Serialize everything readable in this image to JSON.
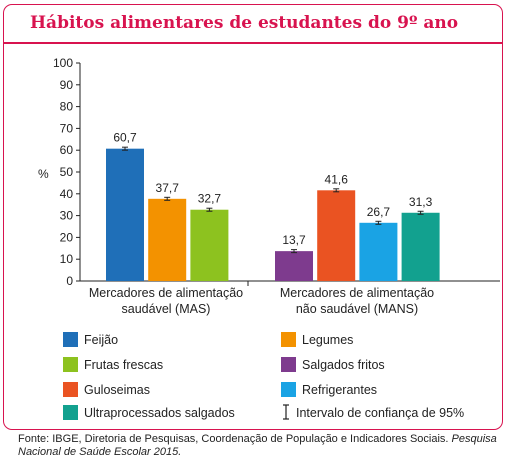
{
  "title": "Hábitos alimentares de estudantes do 9º ano",
  "chart_data": {
    "type": "bar",
    "ylabel": "%",
    "ylim": [
      0,
      100
    ],
    "yticks": [
      0,
      10,
      20,
      30,
      40,
      50,
      60,
      70,
      80,
      90,
      100
    ],
    "groups": [
      {
        "label": [
          "Mercadores de alimentação",
          "saudável (MAS)"
        ],
        "bars": [
          {
            "series": "Feijão",
            "value": 60.7,
            "label": "60,7"
          },
          {
            "series": "Legumes",
            "value": 37.7,
            "label": "37,7"
          },
          {
            "series": "Frutas frescas",
            "value": 32.7,
            "label": "32,7"
          }
        ]
      },
      {
        "label": [
          "Mercadores de alimentação",
          "não saudável (MANS)"
        ],
        "bars": [
          {
            "series": "Salgados fritos",
            "value": 13.7,
            "label": "13,7"
          },
          {
            "series": "Guloseimas",
            "value": 41.6,
            "label": "41,6"
          },
          {
            "series": "Refrigerantes",
            "value": 26.7,
            "label": "26,7"
          },
          {
            "series": "Ultraprocessados salgados",
            "value": 31.3,
            "label": "31,3"
          }
        ]
      }
    ],
    "series": [
      {
        "name": "Feijão",
        "color": "#1f6fb8"
      },
      {
        "name": "Legumes",
        "color": "#f39200"
      },
      {
        "name": "Frutas frescas",
        "color": "#8dc21f"
      },
      {
        "name": "Salgados fritos",
        "color": "#7e3b8e"
      },
      {
        "name": "Guloseimas",
        "color": "#ea5322"
      },
      {
        "name": "Refrigerantes",
        "color": "#1aa3e4"
      },
      {
        "name": "Ultraprocessados salgados",
        "color": "#12a18f"
      }
    ],
    "ci_legend": "Intervalo de confiança de 95%"
  },
  "source": {
    "text": "Fonte: IBGE, Diretoria de Pesquisas, Coordenação de População e Indicadores Sociais.",
    "publication": "Pesquisa Nacional de Saúde Escolar 2015."
  }
}
